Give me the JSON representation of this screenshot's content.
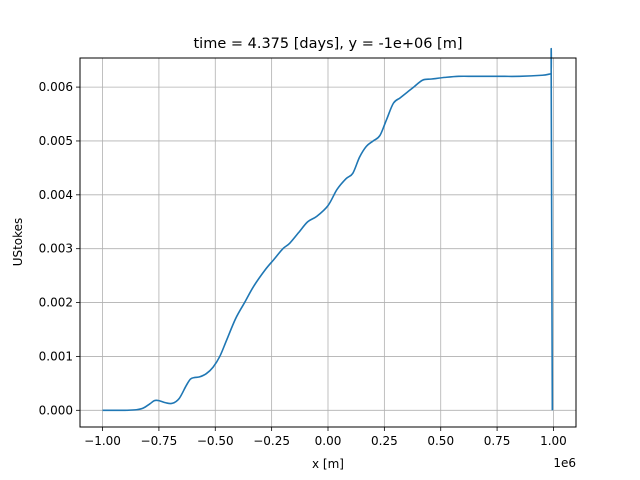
{
  "chart_data": {
    "type": "line",
    "title": "time = 4.375 [days], y = -1e+06 [m]",
    "xlabel": "x [m]",
    "ylabel": "UStokes",
    "x_offset_text": "1e6",
    "xlim": [
      -1.1,
      1.1
    ],
    "ylim": [
      -0.00031,
      0.00654
    ],
    "grid": true,
    "x_ticks": [
      -1.0,
      -0.75,
      -0.5,
      -0.25,
      0.0,
      0.25,
      0.5,
      0.75,
      1.0
    ],
    "x_tick_labels": [
      "−1.00",
      "−0.75",
      "−0.50",
      "−0.25",
      "0.00",
      "0.25",
      "0.50",
      "0.75",
      "1.00"
    ],
    "y_ticks": [
      0.0,
      0.001,
      0.002,
      0.003,
      0.004,
      0.005,
      0.006
    ],
    "y_tick_labels": [
      "0.000",
      "0.001",
      "0.002",
      "0.003",
      "0.004",
      "0.005",
      "0.006"
    ],
    "line_color": "#1f77b4",
    "series": [
      {
        "x": [
          -1.0,
          -0.9,
          -0.85,
          -0.82,
          -0.79,
          -0.77,
          -0.75,
          -0.72,
          -0.69,
          -0.66,
          -0.63,
          -0.61,
          -0.59,
          -0.57,
          -0.54,
          -0.51,
          -0.48,
          -0.45,
          -0.41,
          -0.37,
          -0.33,
          -0.28,
          -0.24,
          -0.2,
          -0.17,
          -0.13,
          -0.09,
          -0.05,
          0.0,
          0.04,
          0.08,
          0.11,
          0.14,
          0.17,
          0.2,
          0.23,
          0.26,
          0.29,
          0.32,
          0.35,
          0.38,
          0.42,
          0.46,
          0.52,
          0.58,
          0.65,
          0.75,
          0.85,
          0.95,
          0.98,
          0.99,
          0.99,
          0.995
        ],
        "y": [
          0.0,
          0.0,
          1e-05,
          4e-05,
          0.00012,
          0.00018,
          0.00018,
          0.00014,
          0.00013,
          0.00022,
          0.00045,
          0.00058,
          0.00061,
          0.00062,
          0.00068,
          0.0008,
          0.001,
          0.0013,
          0.0017,
          0.002,
          0.0023,
          0.0026,
          0.0028,
          0.003,
          0.0031,
          0.0033,
          0.0035,
          0.0036,
          0.0038,
          0.0041,
          0.0043,
          0.0044,
          0.0047,
          0.0049,
          0.005,
          0.0051,
          0.0054,
          0.0057,
          0.0058,
          0.0059,
          0.006,
          0.00613,
          0.00615,
          0.00618,
          0.0062,
          0.0062,
          0.0062,
          0.0062,
          0.00622,
          0.00624,
          0.00625,
          0.00625,
          0.0
        ]
      }
    ]
  }
}
